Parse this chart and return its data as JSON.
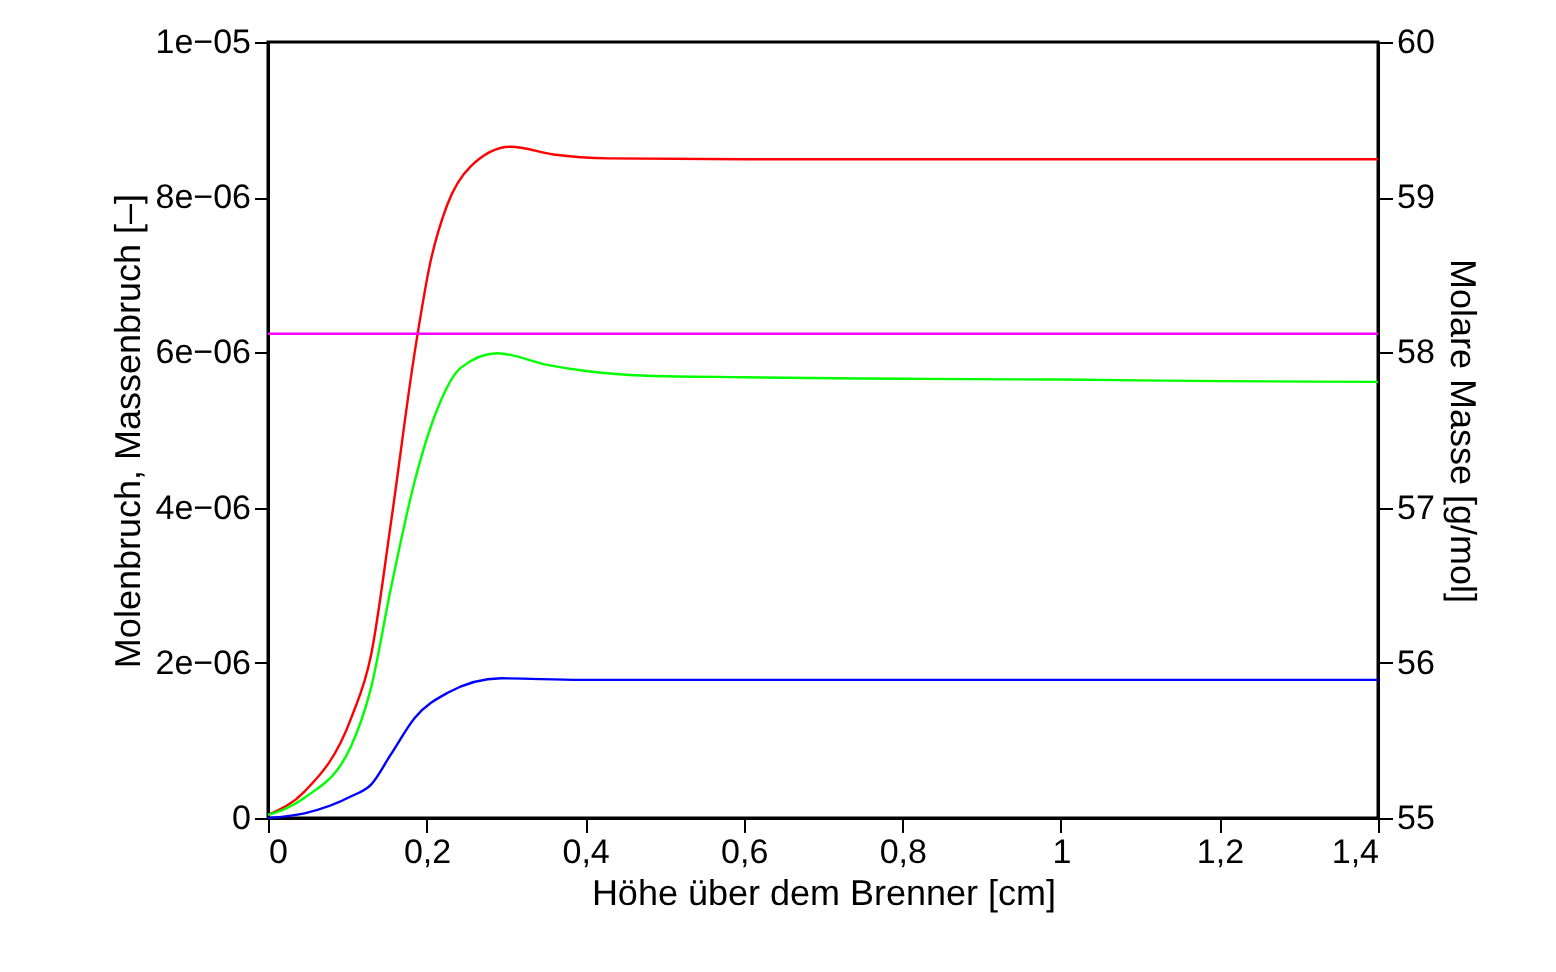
{
  "chart_data": {
    "type": "line",
    "xlabel": "Höhe über dem Brenner [cm]",
    "ylabel": "Molenbruch, Massenbruch [–]",
    "y2label": "Molare Masse [g/mol]",
    "xlim": [
      0,
      1.4
    ],
    "ylim": [
      0,
      1e-05
    ],
    "y2lim": [
      55,
      60
    ],
    "xticks": [
      0,
      {
        "value": 0.2,
        "label": "0,2"
      },
      {
        "value": 0.4,
        "label": "0,4"
      },
      {
        "value": 0.6,
        "label": "0,6"
      },
      {
        "value": 0.8,
        "label": "0,8"
      },
      1,
      {
        "value": 1.2,
        "label": "1,2"
      },
      {
        "value": 1.4,
        "label": "1,4"
      }
    ],
    "yticks": [
      0,
      {
        "value": 2e-06,
        "label": "2e−06"
      },
      {
        "value": 4e-06,
        "label": "4e−06"
      },
      {
        "value": 6e-06,
        "label": "6e−06"
      },
      {
        "value": 8e-06,
        "label": "8e−06"
      },
      {
        "value": 1e-05,
        "label": "1e−05"
      }
    ],
    "y2ticks": [
      55,
      56,
      57,
      58,
      59,
      60
    ],
    "grid": false,
    "series": [
      {
        "color": "#ff0000",
        "x": [
          0,
          0.046,
          0.105,
          0.13,
          0.155,
          0.185,
          0.205,
          0.226,
          0.256,
          0.306,
          0.36,
          0.43,
          0.6,
          0.8,
          1.0,
          1.2,
          1.4
        ],
        "values": [
          4e-08,
          3.4e-07,
          1.29e-06,
          2.1e-06,
          3.8e-06,
          6e-06,
          7.17e-06,
          7.9e-06,
          8.4e-06,
          8.65e-06,
          8.55e-06,
          8.5e-06,
          8.49e-06,
          8.49e-06,
          8.49e-06,
          8.49e-06,
          8.49e-06
        ]
      },
      {
        "color": "#00ff00",
        "x": [
          0,
          0.046,
          0.105,
          0.13,
          0.155,
          0.185,
          0.214,
          0.243,
          0.289,
          0.352,
          0.394,
          0.478,
          0.6,
          0.8,
          1.0,
          1.2,
          1.4
        ],
        "values": [
          4e-08,
          2.6e-07,
          9.3e-07,
          1.68e-06,
          2.96e-06,
          4.34e-06,
          5.28e-06,
          5.8e-06,
          5.99e-06,
          5.84e-06,
          5.77e-06,
          5.7e-06,
          5.68e-06,
          5.66e-06,
          5.65e-06,
          5.63e-06,
          5.62e-06
        ]
      },
      {
        "color": "#0000ff",
        "x": [
          0,
          0.046,
          0.105,
          0.13,
          0.155,
          0.185,
          0.226,
          0.294,
          0.394,
          0.6,
          0.8,
          1.0,
          1.2,
          1.4
        ],
        "values": [
          0,
          6e-08,
          2.8e-07,
          4.3e-07,
          8.2e-07,
          1.29e-06,
          1.61e-06,
          1.8e-06,
          1.78e-06,
          1.78e-06,
          1.78e-06,
          1.78e-06,
          1.78e-06,
          1.78e-06
        ]
      },
      {
        "color": "#ff00ff",
        "axis": "y2",
        "x": [
          0,
          1.4
        ],
        "values": [
          58.12,
          58.12
        ]
      }
    ]
  }
}
